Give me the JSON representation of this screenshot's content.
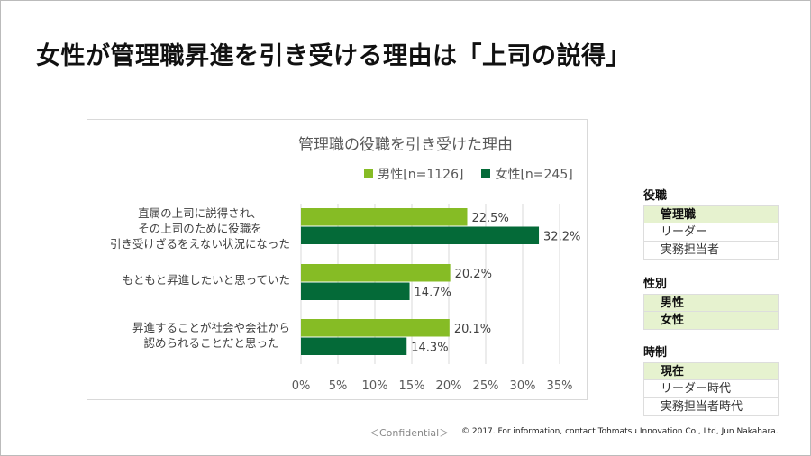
{
  "title": "女性が管理職昇進を引き受ける理由は「上司の説得」",
  "chart_data": {
    "type": "bar",
    "orientation": "horizontal",
    "title": "管理職の役職を引き受けた理由",
    "categories": [
      "直属の上司に説得され、\nその上司のために役職を\n引き受けざるをえない状況になった",
      "もともと昇進したいと思っていた",
      "昇進することが社会や会社から\n認められることだと思った"
    ],
    "series": [
      {
        "name": "男性[n=1126]",
        "color": "#86bc25",
        "values": [
          22.5,
          20.2,
          20.1
        ],
        "labels": [
          "22.5%",
          "20.2%",
          "20.1%"
        ]
      },
      {
        "name": "女性[n=245]",
        "color": "#046a38",
        "values": [
          32.2,
          14.7,
          14.3
        ],
        "labels": [
          "32.2%",
          "14.7%",
          "14.3%"
        ]
      }
    ],
    "xlim": [
      0,
      35
    ],
    "ticks": [
      "0%",
      "5%",
      "10%",
      "15%",
      "20%",
      "25%",
      "30%",
      "35%"
    ],
    "grid": true,
    "legend": "top"
  },
  "filters": [
    {
      "heading": "役職",
      "options": [
        {
          "label": "管理職",
          "selected": true
        },
        {
          "label": "リーダー",
          "selected": false
        },
        {
          "label": "実務担当者",
          "selected": false
        }
      ]
    },
    {
      "heading": "性別",
      "options": [
        {
          "label": "男性",
          "selected": true
        },
        {
          "label": "女性",
          "selected": true
        }
      ]
    },
    {
      "heading": "時制",
      "options": [
        {
          "label": "現在",
          "selected": true
        },
        {
          "label": "リーダー時代",
          "selected": false
        },
        {
          "label": "実務担当者時代",
          "selected": false
        }
      ]
    }
  ],
  "footer": {
    "confidential": "＜Confidential＞",
    "copyright": "© 2017. For information, contact Tohmatsu Innovation Co., Ltd, Jun Nakahara."
  }
}
